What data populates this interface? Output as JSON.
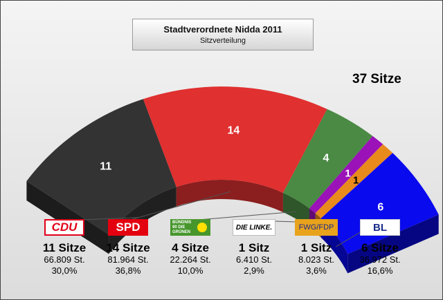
{
  "header": {
    "title": "Stadtverordnete Nidda 2011",
    "subtitle": "Sitzverteilung"
  },
  "total_label": "37 Sitze",
  "parties": [
    {
      "logo": "CDU",
      "seats_label": "11 Sitze",
      "votes": "66.809 St.",
      "pct": "30,0%"
    },
    {
      "logo": "SPD",
      "seats_label": "14 Sitze",
      "votes": "81.964 St.",
      "pct": "36,8%"
    },
    {
      "logo": "BÜNDNIS 90 DIE GRÜNEN",
      "seats_label": "4 Sitze",
      "votes": "22.264 St.",
      "pct": "10,0%"
    },
    {
      "logo": "DIE LINKE.",
      "seats_label": "1 Sitz",
      "votes": "6.410 St.",
      "pct": "2,9%"
    },
    {
      "logo": "FWG/FDP",
      "seats_label": "1 Sitz",
      "votes": "8.023 St.",
      "pct": "3,6%"
    },
    {
      "logo": "BL",
      "seats_label": "6 Sitze",
      "votes": "36.972 St.",
      "pct": "16,6%"
    }
  ],
  "chart_data": {
    "type": "pie",
    "title": "Stadtverordnete Nidda 2011",
    "subtitle": "Sitzverteilung",
    "total": 37,
    "categories": [
      "CDU",
      "SPD",
      "BÜNDNIS 90 DIE GRÜNEN",
      "DIE LINKE.",
      "FWG/FDP",
      "BL"
    ],
    "values": [
      11,
      14,
      4,
      1,
      1,
      6
    ],
    "vote_counts": [
      66809,
      81964,
      22264,
      6410,
      8023,
      36972
    ],
    "vote_percent": [
      30.0,
      36.8,
      10.0,
      2.9,
      3.6,
      16.6
    ],
    "colors": [
      "#333333",
      "#e03030",
      "#4a8a44",
      "#9a12b8",
      "#e88a1c",
      "#0a0aee"
    ]
  }
}
